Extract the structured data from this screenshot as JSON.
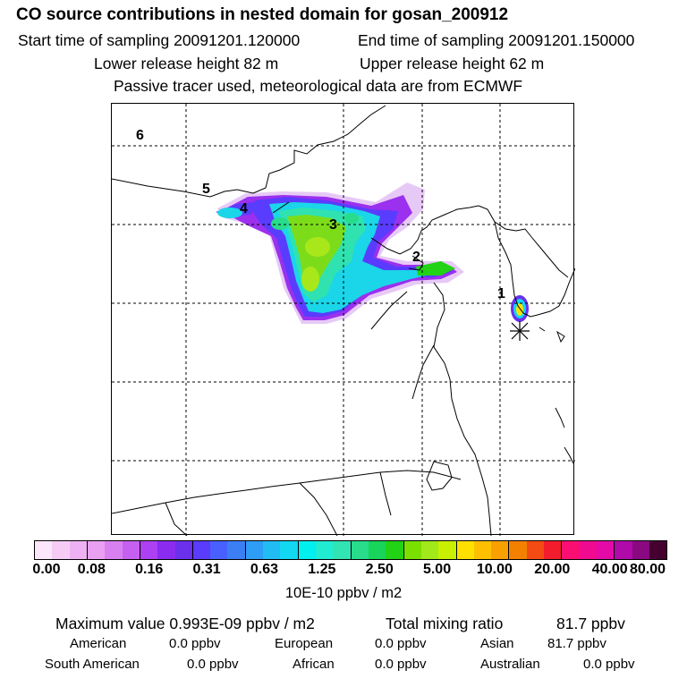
{
  "header": {
    "title": "CO  source contributions in nested domain for gosan_200912",
    "start_time": "Start time of sampling 20091201.120000",
    "end_time": "End time of sampling 20091201.150000",
    "lower_height": "Lower release height   82 m",
    "upper_height": "Upper release height   62 m",
    "note": "Passive tracer used, meteorological data are from ECMWF"
  },
  "map": {
    "source_labels": [
      "6",
      "5",
      "4",
      "3",
      "2",
      "1"
    ],
    "receptor_marker": "asterisk"
  },
  "colorbar": {
    "colors": [
      "#fbe6fb",
      "#f6ccf6",
      "#eeb2f4",
      "#e9a0f2",
      "#d980f0",
      "#c660f0",
      "#ad40f2",
      "#8a2cf0",
      "#6a30ec",
      "#5a3cff",
      "#4860ff",
      "#3c7ff5",
      "#2e9df5",
      "#22bcf5",
      "#12d8f2",
      "#00f0f0",
      "#20ecd2",
      "#32e3b4",
      "#28dc8c",
      "#18d45a",
      "#22d214",
      "#7be000",
      "#a2e81a",
      "#c8f000",
      "#ffe000",
      "#fcc000",
      "#f7a000",
      "#f48000",
      "#f44a14",
      "#f21c2c",
      "#fa0e72",
      "#f00a90",
      "#e30aa8",
      "#b00aaa",
      "#8a0880",
      "#460030"
    ],
    "tick_labels": [
      "0.00",
      "0.08",
      "0.16",
      "0.31",
      "0.63",
      "1.25",
      "2.50",
      "5.00",
      "10.00",
      "20.00",
      "40.00",
      "80.00"
    ],
    "unit": "10E-10 ppbv / m2"
  },
  "stats": {
    "max_label": "Maximum value  0.993E-09 ppbv / m2",
    "total_label": "Total mixing ratio",
    "total_value": "81.7 ppbv"
  },
  "regions": {
    "american_label": "American",
    "american_value": "0.0 ppbv",
    "european_label": "European",
    "european_value": "0.0 ppbv",
    "asian_label": "Asian",
    "asian_value": "81.7 ppbv",
    "south_american_label": "South American",
    "south_american_value": "0.0 ppbv",
    "african_label": "African",
    "african_value": "0.0 ppbv",
    "australian_label": "Australian",
    "australian_value": "0.0 ppbv"
  }
}
